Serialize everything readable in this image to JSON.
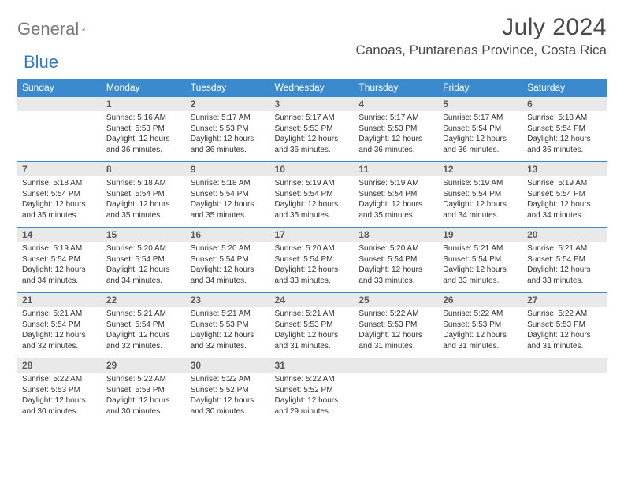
{
  "logo": {
    "gray": "General",
    "blue": "Blue"
  },
  "title": "July 2024",
  "location": "Canoas, Puntarenas Province, Costa Rica",
  "colors": {
    "header_bg": "#3a8acd",
    "header_text": "#ffffff",
    "daynum_bg": "#e9e9e9",
    "daynum_text": "#5a5a5a",
    "body_text": "#333333",
    "logo_gray": "#7a7a7a",
    "logo_blue": "#2f7ac0",
    "rule": "#3a8acd"
  },
  "dow": [
    "Sunday",
    "Monday",
    "Tuesday",
    "Wednesday",
    "Thursday",
    "Friday",
    "Saturday"
  ],
  "weeks": [
    {
      "nums": [
        "",
        "1",
        "2",
        "3",
        "4",
        "5",
        "6"
      ],
      "lines": [
        [
          "",
          "",
          "",
          ""
        ],
        [
          "Sunrise: 5:16 AM",
          "Sunset: 5:53 PM",
          "Daylight: 12 hours",
          "and 36 minutes."
        ],
        [
          "Sunrise: 5:17 AM",
          "Sunset: 5:53 PM",
          "Daylight: 12 hours",
          "and 36 minutes."
        ],
        [
          "Sunrise: 5:17 AM",
          "Sunset: 5:53 PM",
          "Daylight: 12 hours",
          "and 36 minutes."
        ],
        [
          "Sunrise: 5:17 AM",
          "Sunset: 5:53 PM",
          "Daylight: 12 hours",
          "and 36 minutes."
        ],
        [
          "Sunrise: 5:17 AM",
          "Sunset: 5:54 PM",
          "Daylight: 12 hours",
          "and 36 minutes."
        ],
        [
          "Sunrise: 5:18 AM",
          "Sunset: 5:54 PM",
          "Daylight: 12 hours",
          "and 36 minutes."
        ]
      ]
    },
    {
      "nums": [
        "7",
        "8",
        "9",
        "10",
        "11",
        "12",
        "13"
      ],
      "lines": [
        [
          "Sunrise: 5:18 AM",
          "Sunset: 5:54 PM",
          "Daylight: 12 hours",
          "and 35 minutes."
        ],
        [
          "Sunrise: 5:18 AM",
          "Sunset: 5:54 PM",
          "Daylight: 12 hours",
          "and 35 minutes."
        ],
        [
          "Sunrise: 5:18 AM",
          "Sunset: 5:54 PM",
          "Daylight: 12 hours",
          "and 35 minutes."
        ],
        [
          "Sunrise: 5:19 AM",
          "Sunset: 5:54 PM",
          "Daylight: 12 hours",
          "and 35 minutes."
        ],
        [
          "Sunrise: 5:19 AM",
          "Sunset: 5:54 PM",
          "Daylight: 12 hours",
          "and 35 minutes."
        ],
        [
          "Sunrise: 5:19 AM",
          "Sunset: 5:54 PM",
          "Daylight: 12 hours",
          "and 34 minutes."
        ],
        [
          "Sunrise: 5:19 AM",
          "Sunset: 5:54 PM",
          "Daylight: 12 hours",
          "and 34 minutes."
        ]
      ]
    },
    {
      "nums": [
        "14",
        "15",
        "16",
        "17",
        "18",
        "19",
        "20"
      ],
      "lines": [
        [
          "Sunrise: 5:19 AM",
          "Sunset: 5:54 PM",
          "Daylight: 12 hours",
          "and 34 minutes."
        ],
        [
          "Sunrise: 5:20 AM",
          "Sunset: 5:54 PM",
          "Daylight: 12 hours",
          "and 34 minutes."
        ],
        [
          "Sunrise: 5:20 AM",
          "Sunset: 5:54 PM",
          "Daylight: 12 hours",
          "and 34 minutes."
        ],
        [
          "Sunrise: 5:20 AM",
          "Sunset: 5:54 PM",
          "Daylight: 12 hours",
          "and 33 minutes."
        ],
        [
          "Sunrise: 5:20 AM",
          "Sunset: 5:54 PM",
          "Daylight: 12 hours",
          "and 33 minutes."
        ],
        [
          "Sunrise: 5:21 AM",
          "Sunset: 5:54 PM",
          "Daylight: 12 hours",
          "and 33 minutes."
        ],
        [
          "Sunrise: 5:21 AM",
          "Sunset: 5:54 PM",
          "Daylight: 12 hours",
          "and 33 minutes."
        ]
      ]
    },
    {
      "nums": [
        "21",
        "22",
        "23",
        "24",
        "25",
        "26",
        "27"
      ],
      "lines": [
        [
          "Sunrise: 5:21 AM",
          "Sunset: 5:54 PM",
          "Daylight: 12 hours",
          "and 32 minutes."
        ],
        [
          "Sunrise: 5:21 AM",
          "Sunset: 5:54 PM",
          "Daylight: 12 hours",
          "and 32 minutes."
        ],
        [
          "Sunrise: 5:21 AM",
          "Sunset: 5:53 PM",
          "Daylight: 12 hours",
          "and 32 minutes."
        ],
        [
          "Sunrise: 5:21 AM",
          "Sunset: 5:53 PM",
          "Daylight: 12 hours",
          "and 31 minutes."
        ],
        [
          "Sunrise: 5:22 AM",
          "Sunset: 5:53 PM",
          "Daylight: 12 hours",
          "and 31 minutes."
        ],
        [
          "Sunrise: 5:22 AM",
          "Sunset: 5:53 PM",
          "Daylight: 12 hours",
          "and 31 minutes."
        ],
        [
          "Sunrise: 5:22 AM",
          "Sunset: 5:53 PM",
          "Daylight: 12 hours",
          "and 31 minutes."
        ]
      ]
    },
    {
      "nums": [
        "28",
        "29",
        "30",
        "31",
        "",
        "",
        ""
      ],
      "lines": [
        [
          "Sunrise: 5:22 AM",
          "Sunset: 5:53 PM",
          "Daylight: 12 hours",
          "and 30 minutes."
        ],
        [
          "Sunrise: 5:22 AM",
          "Sunset: 5:53 PM",
          "Daylight: 12 hours",
          "and 30 minutes."
        ],
        [
          "Sunrise: 5:22 AM",
          "Sunset: 5:52 PM",
          "Daylight: 12 hours",
          "and 30 minutes."
        ],
        [
          "Sunrise: 5:22 AM",
          "Sunset: 5:52 PM",
          "Daylight: 12 hours",
          "and 29 minutes."
        ],
        [
          "",
          "",
          "",
          ""
        ],
        [
          "",
          "",
          "",
          ""
        ],
        [
          "",
          "",
          "",
          ""
        ]
      ]
    }
  ]
}
